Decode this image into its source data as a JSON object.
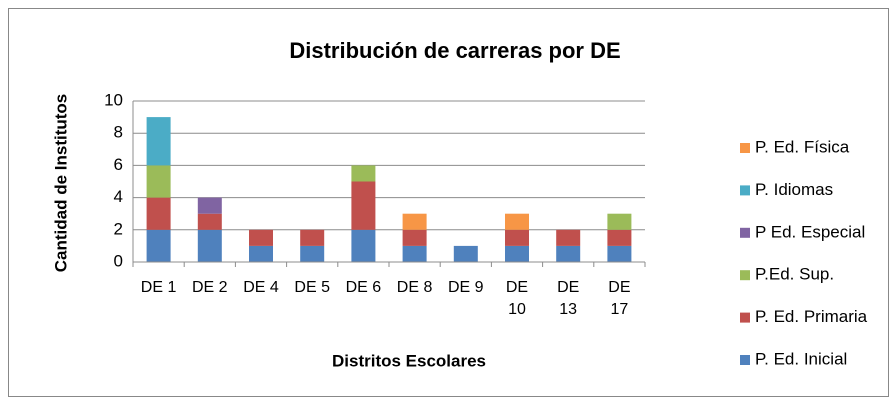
{
  "chart_data": {
    "type": "stacked_bar",
    "title": "Distribución de carreras por DE",
    "x_label": "Distritos Escolares",
    "y_label": "Cantidad de Institutos",
    "categories": [
      "DE 1",
      "DE 2",
      "DE 4",
      "DE 5",
      "DE 6",
      "DE 8",
      "DE 9",
      "DE 10",
      "DE 13",
      "DE 17"
    ],
    "series": [
      {
        "name": "P. Ed. Inicial",
        "color": "#4f81bd",
        "values": [
          2,
          2,
          1,
          1,
          2,
          1,
          1,
          1,
          1,
          1
        ]
      },
      {
        "name": "P. Ed. Primaria",
        "color": "#c0504d",
        "values": [
          2,
          1,
          1,
          1,
          3,
          1,
          0,
          1,
          1,
          1
        ]
      },
      {
        "name": "P.Ed. Sup.",
        "color": "#9bbb59",
        "values": [
          2,
          0,
          0,
          0,
          1,
          0,
          0,
          0,
          0,
          1
        ]
      },
      {
        "name": "P Ed. Especial",
        "color": "#8064a2",
        "values": [
          0,
          1,
          0,
          0,
          0,
          0,
          0,
          0,
          0,
          0
        ]
      },
      {
        "name": "P. Idiomas",
        "color": "#4bacc6",
        "values": [
          3,
          0,
          0,
          0,
          0,
          0,
          0,
          0,
          0,
          0
        ]
      },
      {
        "name": "P. Ed. Física",
        "color": "#f79646",
        "values": [
          0,
          0,
          0,
          0,
          0,
          1,
          0,
          1,
          0,
          0
        ]
      }
    ],
    "ylim": [
      0,
      10
    ],
    "yticks": [
      0,
      2,
      4,
      6,
      8,
      10
    ],
    "grid": true
  }
}
